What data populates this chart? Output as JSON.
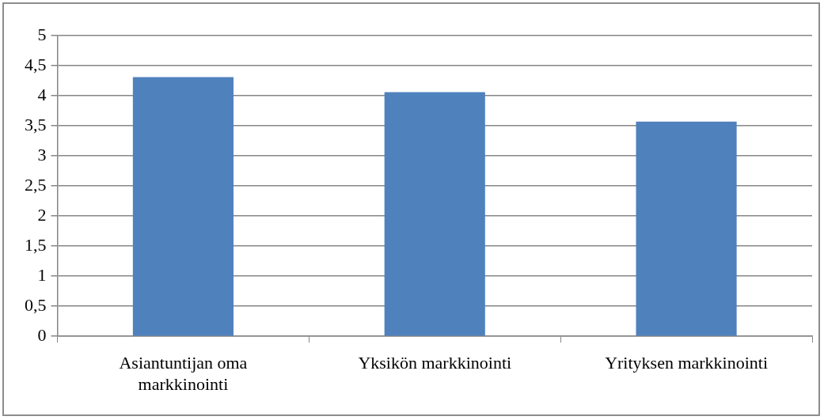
{
  "chart_data": {
    "type": "bar",
    "categories": [
      "Asiantuntijan oma markkinointi",
      "Yksikön markkinointi",
      "Yrityksen markkinointi"
    ],
    "values": [
      4.31,
      4.06,
      3.57
    ],
    "color": "#4f81bd",
    "ylim": [
      0,
      5
    ],
    "yticks": [
      0,
      {
        "value": 0.5,
        "label": "0,5"
      },
      1,
      {
        "value": 1.5,
        "label": "1,5"
      },
      2,
      {
        "value": 2.5,
        "label": "2,5"
      },
      3,
      {
        "value": 3.5,
        "label": "3,5"
      },
      4,
      {
        "value": 4.5,
        "label": "4,5"
      },
      5
    ],
    "grid": "y",
    "legend": false
  }
}
